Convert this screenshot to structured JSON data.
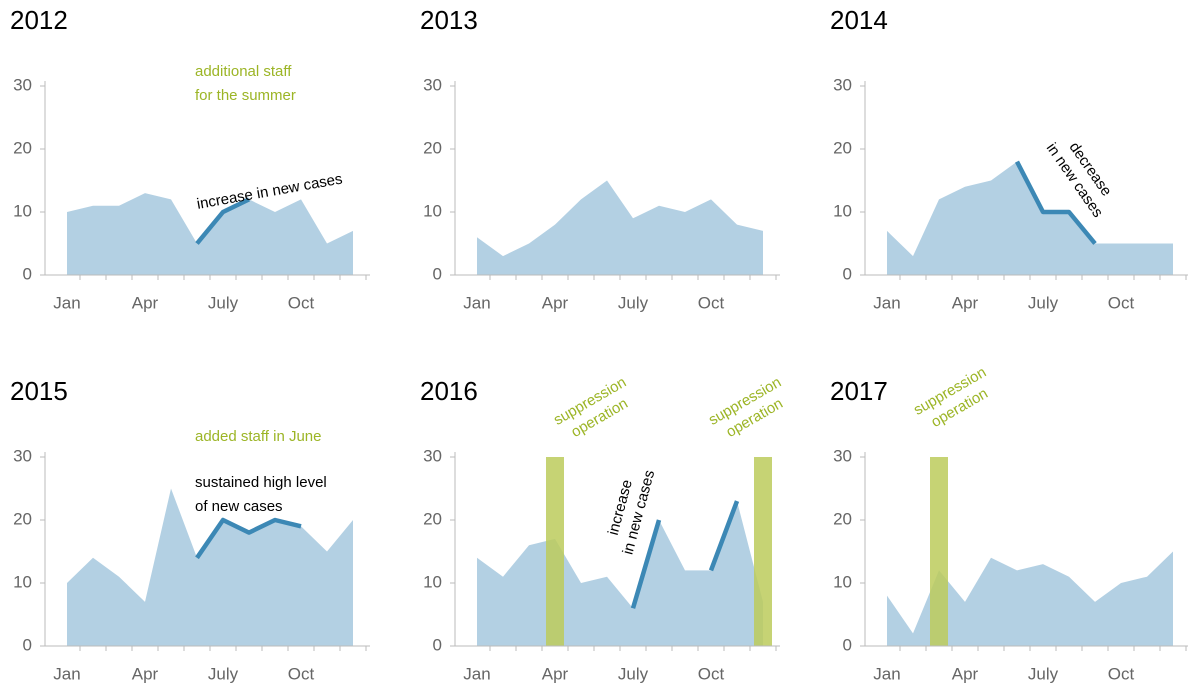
{
  "chart_data": [
    {
      "type": "area",
      "title": "2012",
      "categories": [
        "Jan",
        null,
        null,
        "Apr",
        null,
        null,
        "July",
        null,
        null,
        "Oct",
        null,
        null
      ],
      "values": [
        10,
        11,
        11,
        13,
        12,
        5,
        10,
        12,
        10,
        12,
        5,
        7
      ],
      "color": "#b3d0e3",
      "highlight": {
        "values": [
          null,
          null,
          null,
          null,
          null,
          5,
          10,
          12,
          null,
          null,
          null,
          null
        ],
        "color": "#3c88b5"
      },
      "annotations": [
        {
          "lines": [
            "additional staff",
            "for the summer"
          ],
          "color": "#9cb526"
        },
        {
          "lines": [
            "increase in new cases"
          ],
          "color": "#000000"
        }
      ],
      "ylim": [
        0,
        30
      ],
      "yticks": [
        0,
        10,
        20,
        30
      ]
    },
    {
      "type": "area",
      "title": "2013",
      "categories": [
        "Jan",
        null,
        null,
        "Apr",
        null,
        null,
        "July",
        null,
        null,
        "Oct",
        null,
        null
      ],
      "values": [
        6,
        3,
        5,
        8,
        12,
        15,
        9,
        11,
        10,
        12,
        8,
        7
      ],
      "color": "#b3d0e3",
      "ylim": [
        0,
        30
      ],
      "yticks": [
        0,
        10,
        20,
        30
      ]
    },
    {
      "type": "area",
      "title": "2014",
      "categories": [
        "Jan",
        null,
        null,
        "Apr",
        null,
        null,
        "July",
        null,
        null,
        "Oct",
        null,
        null
      ],
      "values": [
        7,
        3,
        12,
        14,
        15,
        18,
        10,
        10,
        5,
        5,
        5,
        5
      ],
      "color": "#b3d0e3",
      "highlight": {
        "values": [
          null,
          null,
          null,
          null,
          null,
          18,
          10,
          10,
          5,
          null,
          null,
          null
        ],
        "color": "#3c88b5"
      },
      "annotations": [
        {
          "lines": [
            "decrease",
            "in new cases"
          ],
          "color": "#000000"
        }
      ],
      "ylim": [
        0,
        30
      ],
      "yticks": [
        0,
        10,
        20,
        30
      ]
    },
    {
      "type": "area",
      "title": "2015",
      "categories": [
        "Jan",
        null,
        null,
        "Apr",
        null,
        null,
        "July",
        null,
        null,
        "Oct",
        null,
        null
      ],
      "values": [
        10,
        14,
        11,
        7,
        25,
        14,
        20,
        18,
        20,
        19,
        15,
        20
      ],
      "color": "#b3d0e3",
      "highlight": {
        "values": [
          null,
          null,
          null,
          null,
          null,
          14,
          20,
          18,
          20,
          19,
          null,
          null
        ],
        "color": "#3c88b5"
      },
      "annotations": [
        {
          "lines": [
            "added staff in June"
          ],
          "color": "#9cb526"
        },
        {
          "lines": [
            "sustained high level",
            "of new cases"
          ],
          "color": "#000000"
        }
      ],
      "ylim": [
        0,
        30
      ],
      "yticks": [
        0,
        10,
        20,
        30
      ]
    },
    {
      "type": "area",
      "title": "2016",
      "categories": [
        "Jan",
        null,
        null,
        "Apr",
        null,
        null,
        "July",
        null,
        null,
        "Oct",
        null,
        null
      ],
      "values": [
        14,
        11,
        16,
        17,
        10,
        11,
        6,
        20,
        12,
        12,
        23,
        7
      ],
      "color": "#b3d0e3",
      "highlight": {
        "values": [
          null,
          null,
          null,
          null,
          null,
          null,
          6,
          20,
          null,
          12,
          23,
          null
        ],
        "color": "#3c88b5"
      },
      "bars": {
        "values": [
          null,
          null,
          null,
          30,
          null,
          null,
          null,
          null,
          null,
          null,
          null,
          30
        ],
        "color": "#bccb5c"
      },
      "annotations": [
        {
          "lines": [
            "suppression",
            "operation"
          ],
          "color": "#9cb526"
        },
        {
          "lines": [
            "suppression",
            "operation"
          ],
          "color": "#9cb526"
        },
        {
          "lines": [
            "increase",
            "in new cases"
          ],
          "color": "#000000"
        }
      ],
      "ylim": [
        0,
        30
      ],
      "yticks": [
        0,
        10,
        20,
        30
      ]
    },
    {
      "type": "area",
      "title": "2017",
      "categories": [
        "Jan",
        null,
        null,
        "Apr",
        null,
        null,
        "July",
        null,
        null,
        "Oct",
        null,
        null
      ],
      "values": [
        8,
        2,
        12,
        7,
        14,
        12,
        13,
        11,
        7,
        10,
        11,
        15
      ],
      "color": "#b3d0e3",
      "bars": {
        "values": [
          null,
          null,
          30,
          null,
          null,
          null,
          null,
          null,
          null,
          null,
          null,
          null
        ],
        "color": "#bccb5c"
      },
      "annotations": [
        {
          "lines": [
            "suppression",
            "operation"
          ],
          "color": "#9cb526"
        }
      ],
      "ylim": [
        0,
        30
      ],
      "yticks": [
        0,
        10,
        20,
        30
      ]
    }
  ]
}
